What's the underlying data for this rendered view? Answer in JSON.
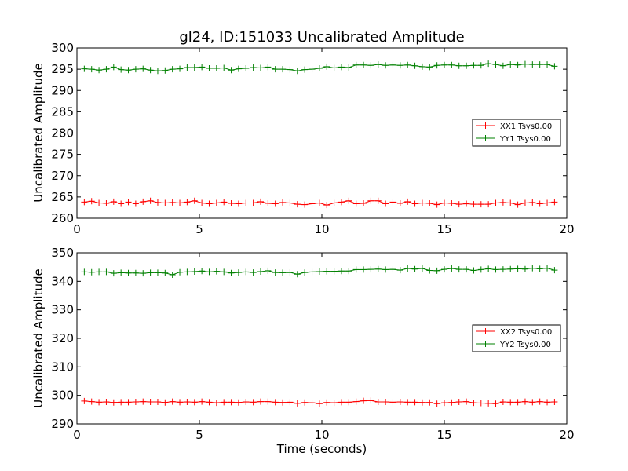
{
  "chart_data": [
    {
      "type": "line",
      "title": "gl24, ID:151033 Uncalibrated Amplitude",
      "xlabel": "",
      "ylabel": "Uncalibrated Amplitude",
      "xlim": [
        0,
        20
      ],
      "ylim": [
        260,
        300
      ],
      "xticks": [
        0,
        5,
        10,
        15,
        20
      ],
      "yticks": [
        260,
        265,
        270,
        275,
        280,
        285,
        290,
        295,
        300
      ],
      "grid": false,
      "legend_position": "right",
      "x": [
        0.3,
        0.6,
        0.9,
        1.2,
        1.5,
        1.8,
        2.1,
        2.4,
        2.7,
        3.0,
        3.3,
        3.6,
        3.9,
        4.2,
        4.5,
        4.8,
        5.1,
        5.4,
        5.7,
        6.0,
        6.3,
        6.6,
        6.9,
        7.2,
        7.5,
        7.8,
        8.1,
        8.4,
        8.7,
        9.0,
        9.3,
        9.6,
        9.9,
        10.2,
        10.5,
        10.8,
        11.1,
        11.4,
        11.7,
        12.0,
        12.3,
        12.6,
        12.9,
        13.2,
        13.5,
        13.8,
        14.1,
        14.4,
        14.7,
        15.0,
        15.3,
        15.6,
        15.9,
        16.2,
        16.5,
        16.8,
        17.1,
        17.4,
        17.7,
        18.0,
        18.3,
        18.6,
        18.9,
        19.2,
        19.5
      ],
      "series": [
        {
          "name": "XX1 Tsys0.00",
          "color": "#ff0000",
          "values": [
            263.8,
            264.0,
            263.6,
            263.5,
            263.9,
            263.4,
            263.8,
            263.4,
            263.9,
            264.1,
            263.7,
            263.6,
            263.7,
            263.6,
            263.8,
            264.1,
            263.6,
            263.4,
            263.6,
            263.8,
            263.5,
            263.4,
            263.6,
            263.6,
            263.9,
            263.5,
            263.4,
            263.7,
            263.6,
            263.3,
            263.2,
            263.4,
            263.6,
            263.1,
            263.6,
            263.8,
            264.1,
            263.4,
            263.5,
            264.1,
            264.1,
            263.4,
            263.8,
            263.5,
            263.9,
            263.4,
            263.6,
            263.5,
            263.2,
            263.6,
            263.5,
            263.3,
            263.4,
            263.3,
            263.3,
            263.3,
            263.6,
            263.7,
            263.6,
            263.2,
            263.6,
            263.7,
            263.4,
            263.6,
            263.8
          ]
        },
        {
          "name": "YY1 Tsys0.00",
          "color": "#008000",
          "values": [
            295.1,
            295.0,
            294.8,
            295.0,
            295.5,
            294.9,
            294.8,
            295.0,
            295.1,
            294.8,
            294.6,
            294.7,
            295.0,
            295.1,
            295.4,
            295.4,
            295.5,
            295.2,
            295.2,
            295.3,
            294.8,
            295.1,
            295.2,
            295.4,
            295.3,
            295.5,
            295.0,
            295.0,
            294.9,
            294.6,
            294.9,
            295.0,
            295.2,
            295.6,
            295.3,
            295.5,
            295.4,
            296.0,
            296.0,
            295.9,
            296.1,
            295.9,
            296.0,
            295.9,
            296.0,
            295.8,
            295.6,
            295.5,
            295.9,
            296.0,
            296.0,
            295.8,
            295.8,
            295.9,
            295.9,
            296.3,
            296.1,
            295.8,
            296.1,
            296.0,
            296.2,
            296.1,
            296.1,
            296.1,
            295.7
          ]
        }
      ]
    },
    {
      "type": "line",
      "title": "",
      "xlabel": "Time (seconds)",
      "ylabel": "Uncalibrated Amplitude",
      "xlim": [
        0,
        20
      ],
      "ylim": [
        290,
        350
      ],
      "xticks": [
        0,
        5,
        10,
        15,
        20
      ],
      "yticks": [
        290,
        300,
        310,
        320,
        330,
        340,
        350
      ],
      "grid": false,
      "legend_position": "right",
      "x": [
        0.3,
        0.6,
        0.9,
        1.2,
        1.5,
        1.8,
        2.1,
        2.4,
        2.7,
        3.0,
        3.3,
        3.6,
        3.9,
        4.2,
        4.5,
        4.8,
        5.1,
        5.4,
        5.7,
        6.0,
        6.3,
        6.6,
        6.9,
        7.2,
        7.5,
        7.8,
        8.1,
        8.4,
        8.7,
        9.0,
        9.3,
        9.6,
        9.9,
        10.2,
        10.5,
        10.8,
        11.1,
        11.4,
        11.7,
        12.0,
        12.3,
        12.6,
        12.9,
        13.2,
        13.5,
        13.8,
        14.1,
        14.4,
        14.7,
        15.0,
        15.3,
        15.6,
        15.9,
        16.2,
        16.5,
        16.8,
        17.1,
        17.4,
        17.7,
        18.0,
        18.3,
        18.6,
        18.9,
        19.2,
        19.5
      ],
      "series": [
        {
          "name": "XX2 Tsys0.00",
          "color": "#ff0000",
          "values": [
            298.0,
            297.8,
            297.6,
            297.7,
            297.5,
            297.6,
            297.6,
            297.7,
            297.8,
            297.7,
            297.7,
            297.5,
            297.8,
            297.6,
            297.7,
            297.6,
            297.8,
            297.6,
            297.4,
            297.6,
            297.6,
            297.5,
            297.7,
            297.6,
            297.8,
            297.8,
            297.6,
            297.5,
            297.6,
            297.2,
            297.5,
            297.4,
            297.1,
            297.5,
            297.4,
            297.6,
            297.6,
            297.8,
            298.1,
            298.2,
            297.7,
            297.7,
            297.6,
            297.7,
            297.6,
            297.6,
            297.5,
            297.5,
            297.1,
            297.4,
            297.5,
            297.7,
            297.8,
            297.4,
            297.3,
            297.2,
            297.1,
            297.7,
            297.6,
            297.6,
            297.8,
            297.6,
            297.8,
            297.6,
            297.7
          ]
        },
        {
          "name": "YY2 Tsys0.00",
          "color": "#008000",
          "values": [
            343.3,
            343.2,
            343.3,
            343.3,
            342.8,
            343.0,
            342.9,
            342.9,
            342.8,
            343.0,
            343.0,
            342.9,
            342.3,
            343.2,
            343.3,
            343.4,
            343.6,
            343.3,
            343.5,
            343.3,
            342.9,
            343.1,
            343.3,
            343.1,
            343.4,
            343.7,
            343.1,
            343.0,
            343.1,
            342.5,
            343.1,
            343.3,
            343.4,
            343.5,
            343.5,
            343.6,
            343.6,
            344.1,
            344.1,
            344.2,
            344.3,
            344.1,
            344.2,
            343.9,
            344.5,
            344.3,
            344.5,
            343.8,
            343.7,
            344.2,
            344.5,
            344.2,
            344.2,
            343.8,
            344.1,
            344.4,
            344.1,
            344.2,
            344.3,
            344.4,
            344.3,
            344.6,
            344.4,
            344.6,
            343.9
          ]
        }
      ]
    }
  ]
}
